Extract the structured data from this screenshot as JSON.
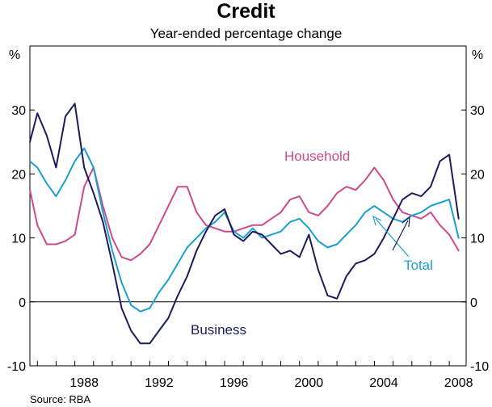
{
  "chart_data": {
    "type": "line",
    "title": "Credit",
    "subtitle": "Year-ended percentage change",
    "y_unit_left": "%",
    "y_unit_right": "%",
    "ylim": [
      -10,
      40
    ],
    "yticks": [
      "-10",
      "0",
      "10",
      "20",
      "30"
    ],
    "ytick_values": [
      -10,
      0,
      10,
      20,
      30
    ],
    "xlim": [
      1985.6,
      2008.9
    ],
    "xticks": [
      "1988",
      "1992",
      "1996",
      "2000",
      "2004",
      "2008"
    ],
    "xtick_values": [
      1988,
      1992,
      1996,
      2000,
      2004,
      2008
    ],
    "source": "Source: RBA",
    "colors": {
      "Household": "#cc4b8a",
      "Total": "#1a9fd0",
      "Business": "#1c1c5c"
    },
    "series": [
      {
        "name": "Household",
        "label": "Household",
        "x": [
          1985.6,
          1986.0,
          1986.5,
          1987.0,
          1987.5,
          1988.0,
          1988.5,
          1989.0,
          1989.5,
          1990.0,
          1990.5,
          1991.0,
          1991.5,
          1992.0,
          1992.5,
          1993.0,
          1993.5,
          1994.0,
          1994.5,
          1995.0,
          1995.5,
          1996.0,
          1996.5,
          1997.0,
          1997.5,
          1998.0,
          1998.5,
          1999.0,
          1999.5,
          2000.0,
          2000.5,
          2001.0,
          2001.5,
          2002.0,
          2002.5,
          2003.0,
          2003.5,
          2004.0,
          2004.5,
          2005.0,
          2005.5,
          2006.0,
          2006.5,
          2007.0,
          2007.5,
          2008.0,
          2008.5
        ],
        "values": [
          17.5,
          12.0,
          9.0,
          9.0,
          9.5,
          10.5,
          18.0,
          21.0,
          15.0,
          10.0,
          7.0,
          6.5,
          7.5,
          9.0,
          12.0,
          15.0,
          18.0,
          18.0,
          14.0,
          12.0,
          11.5,
          11.0,
          11.0,
          11.5,
          12.0,
          12.0,
          13.0,
          14.0,
          16.0,
          16.5,
          14.0,
          13.5,
          15.0,
          17.0,
          18.0,
          17.5,
          19.0,
          21.0,
          19.0,
          16.0,
          14.0,
          13.5,
          13.0,
          14.0,
          12.0,
          10.5,
          8.0
        ]
      },
      {
        "name": "Total",
        "label": "Total",
        "x": [
          1985.6,
          1986.0,
          1986.5,
          1987.0,
          1987.5,
          1988.0,
          1988.5,
          1989.0,
          1989.5,
          1990.0,
          1990.5,
          1991.0,
          1991.5,
          1992.0,
          1992.5,
          1993.0,
          1993.5,
          1994.0,
          1994.5,
          1995.0,
          1995.5,
          1996.0,
          1996.5,
          1997.0,
          1997.5,
          1998.0,
          1998.5,
          1999.0,
          1999.5,
          2000.0,
          2000.5,
          2001.0,
          2001.5,
          2002.0,
          2002.5,
          2003.0,
          2003.5,
          2004.0,
          2004.5,
          2005.0,
          2005.5,
          2006.0,
          2006.5,
          2007.0,
          2007.5,
          2008.0,
          2008.5
        ],
        "values": [
          22.0,
          21.0,
          18.5,
          16.5,
          19.0,
          22.0,
          24.0,
          21.0,
          14.0,
          8.0,
          3.0,
          -0.5,
          -1.5,
          -1.0,
          1.5,
          3.5,
          6.0,
          8.5,
          10.0,
          11.5,
          12.5,
          14.0,
          11.0,
          10.0,
          11.5,
          10.0,
          10.5,
          11.0,
          12.5,
          13.0,
          11.5,
          9.5,
          8.5,
          9.0,
          10.5,
          12.0,
          14.0,
          15.0,
          14.0,
          13.0,
          12.5,
          13.5,
          14.0,
          15.0,
          15.5,
          16.0,
          10.0
        ]
      },
      {
        "name": "Business",
        "label": "Business",
        "x": [
          1985.6,
          1986.0,
          1986.5,
          1987.0,
          1987.5,
          1988.0,
          1988.5,
          1989.0,
          1989.5,
          1990.0,
          1990.5,
          1991.0,
          1991.5,
          1992.0,
          1992.5,
          1993.0,
          1993.5,
          1994.0,
          1994.5,
          1995.0,
          1995.5,
          1996.0,
          1996.5,
          1997.0,
          1997.5,
          1998.0,
          1998.5,
          1999.0,
          1999.5,
          2000.0,
          2000.5,
          2001.0,
          2001.5,
          2002.0,
          2002.5,
          2003.0,
          2003.5,
          2004.0,
          2004.5,
          2005.0,
          2005.5,
          2006.0,
          2006.5,
          2007.0,
          2007.5,
          2008.0,
          2008.5
        ],
        "values": [
          25.0,
          29.5,
          26.0,
          21.0,
          29.0,
          31.0,
          21.0,
          17.0,
          12.5,
          6.0,
          -1.0,
          -4.5,
          -6.5,
          -6.5,
          -4.5,
          -2.5,
          1.0,
          4.0,
          8.0,
          11.0,
          13.5,
          14.5,
          10.5,
          9.5,
          11.0,
          10.5,
          9.0,
          7.5,
          8.0,
          7.0,
          10.5,
          5.0,
          1.0,
          0.5,
          4.0,
          6.0,
          6.5,
          7.5,
          10.0,
          13.0,
          16.0,
          17.0,
          16.5,
          18.0,
          22.0,
          23.0,
          13.0
        ]
      }
    ],
    "annotations": [
      {
        "text": "Household",
        "series": "Household"
      },
      {
        "text": "Total",
        "series": "Total"
      },
      {
        "text": "Business",
        "series": "Business"
      }
    ]
  }
}
